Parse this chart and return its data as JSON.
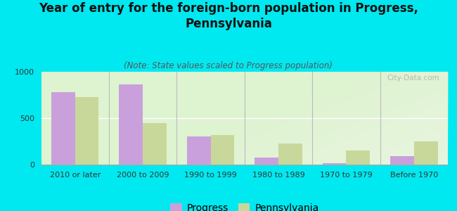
{
  "title": "Year of entry for the foreign-born population in Progress,\nPennsylvania",
  "subtitle": "(Note: State values scaled to Progress population)",
  "categories": [
    "2010 or later",
    "2000 to 2009",
    "1990 to 1999",
    "1980 to 1989",
    "1970 to 1979",
    "Before 1970"
  ],
  "progress_values": [
    780,
    860,
    300,
    75,
    15,
    90
  ],
  "pennsylvania_values": [
    730,
    450,
    320,
    230,
    155,
    250
  ],
  "progress_color": "#c9a0dc",
  "pennsylvania_color": "#c8d89a",
  "background_outer": "#00e8f0",
  "background_inner": "#e8f5e0",
  "ylim": [
    0,
    1000
  ],
  "yticks": [
    0,
    500,
    1000
  ],
  "bar_width": 0.35,
  "title_fontsize": 12,
  "subtitle_fontsize": 8.5,
  "tick_fontsize": 8,
  "legend_fontsize": 10,
  "watermark_text": "City-Data.com"
}
